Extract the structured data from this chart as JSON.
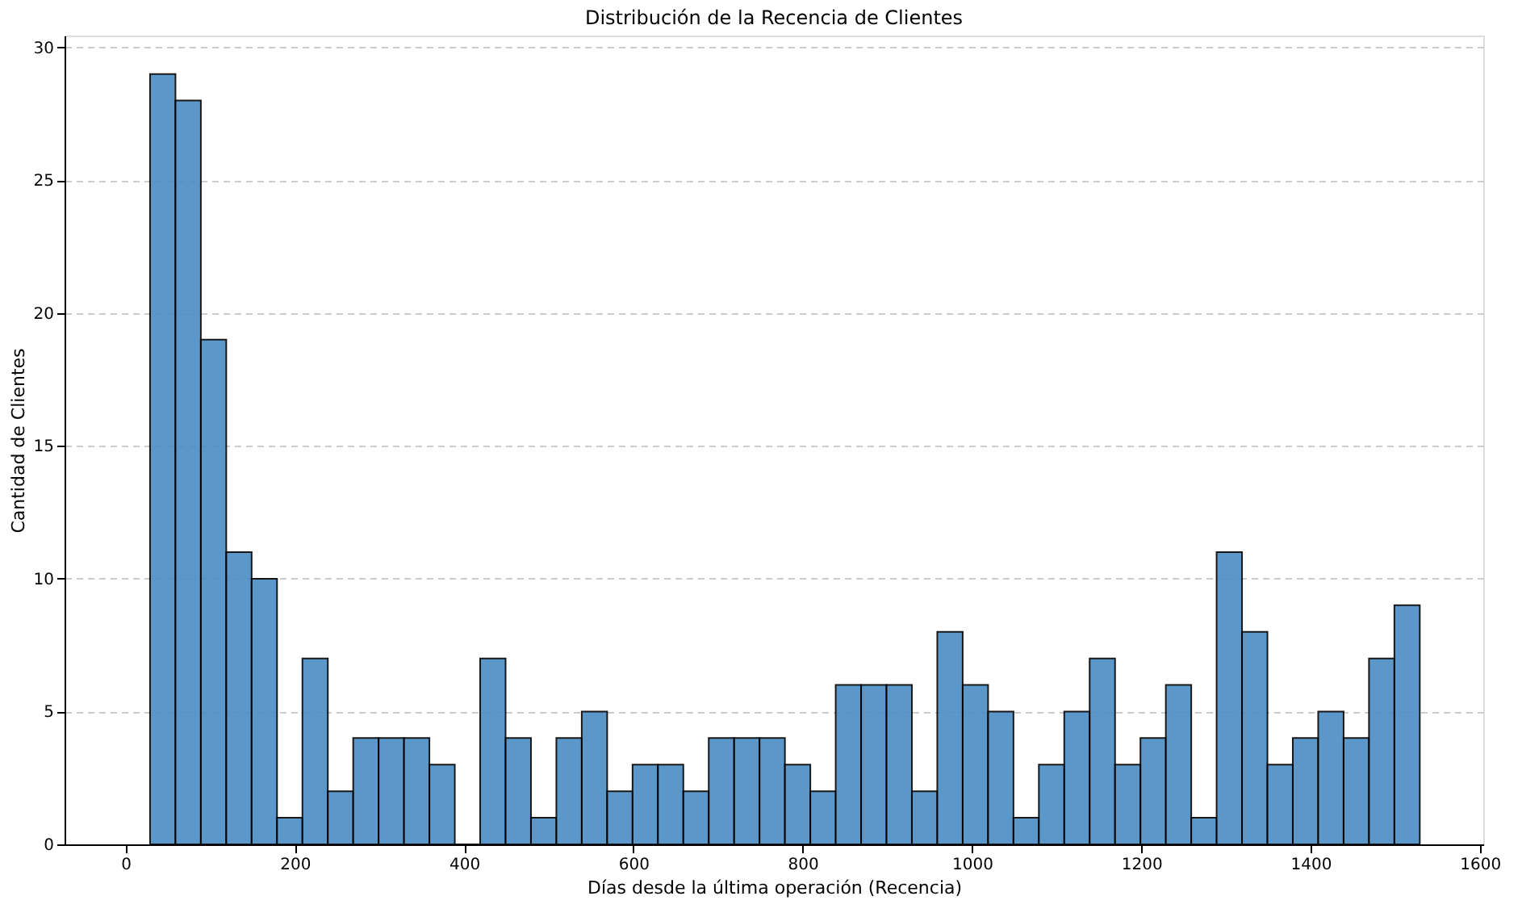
{
  "chart_data": {
    "type": "histogram",
    "title": "Distribución de la Recencia de Clientes",
    "xlabel": "Días desde la última operación (Recencia)",
    "ylabel": "Cantidad de Clientes",
    "bins": [
      29,
      59,
      89,
      119,
      149,
      179,
      209,
      239,
      269,
      299,
      329,
      359,
      389,
      419,
      449,
      479,
      509,
      539,
      569,
      599,
      629,
      659,
      689,
      719,
      749,
      779,
      809,
      839,
      869,
      899,
      929,
      959,
      989,
      1019,
      1049,
      1079,
      1109,
      1139,
      1169,
      1199,
      1229,
      1259,
      1289,
      1319,
      1349,
      1379,
      1409,
      1439,
      1469,
      1499,
      1529
    ],
    "values": [
      29,
      28,
      19,
      11,
      10,
      1,
      7,
      2,
      4,
      4,
      4,
      3,
      0,
      7,
      4,
      1,
      4,
      5,
      2,
      3,
      3,
      2,
      4,
      4,
      4,
      3,
      2,
      6,
      6,
      6,
      2,
      8,
      6,
      5,
      1,
      3,
      5,
      7,
      3,
      4,
      6,
      1,
      11,
      8,
      3,
      4,
      5,
      4,
      7,
      9
    ],
    "color": "#4a8cc4",
    "xlim": [
      -72,
      1604
    ],
    "ylim": [
      0,
      30.45
    ],
    "xticks": [
      0,
      200,
      400,
      600,
      800,
      1000,
      1200,
      1400,
      1600
    ],
    "yticks": [
      0,
      5,
      10,
      15,
      20,
      25,
      30
    ],
    "grid": "y"
  }
}
